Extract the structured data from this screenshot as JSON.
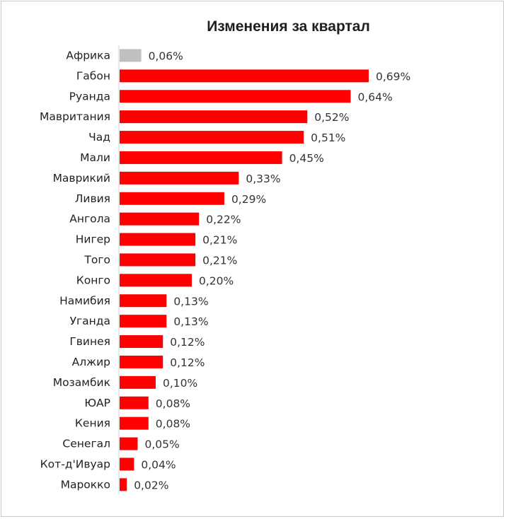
{
  "chart_data": {
    "type": "bar",
    "orientation": "horizontal",
    "title": "Изменения за квартал",
    "categories": [
      "Африка",
      "Габон",
      "Руанда",
      "Мавритания",
      "Чад",
      "Мали",
      "Маврикий",
      "Ливия",
      "Ангола",
      "Нигер",
      "Того",
      "Конго",
      "Намибия",
      "Уганда",
      "Гвинея",
      "Алжир",
      "Мозамбик",
      "ЮАР",
      "Кения",
      "Сенегал",
      "Кот-д'Ивуар",
      "Марокко"
    ],
    "values": [
      0.06,
      0.69,
      0.64,
      0.52,
      0.51,
      0.45,
      0.33,
      0.29,
      0.22,
      0.21,
      0.21,
      0.2,
      0.13,
      0.13,
      0.12,
      0.12,
      0.1,
      0.08,
      0.08,
      0.05,
      0.04,
      0.02
    ],
    "labels": [
      "0,06%",
      "0,69%",
      "0,64%",
      "0,52%",
      "0,51%",
      "0,45%",
      "0,33%",
      "0,29%",
      "0,22%",
      "0,21%",
      "0,21%",
      "0,20%",
      "0,13%",
      "0,13%",
      "0,12%",
      "0,12%",
      "0,10%",
      "0,08%",
      "0,08%",
      "0,05%",
      "0,04%",
      "0,02%"
    ],
    "xlim": [
      0,
      0.69
    ],
    "colors": {
      "highlight": "#c0c0c0",
      "default": "#ff0000"
    },
    "highlight_category": "Африка",
    "grid": false,
    "xlabel": "",
    "ylabel": ""
  }
}
